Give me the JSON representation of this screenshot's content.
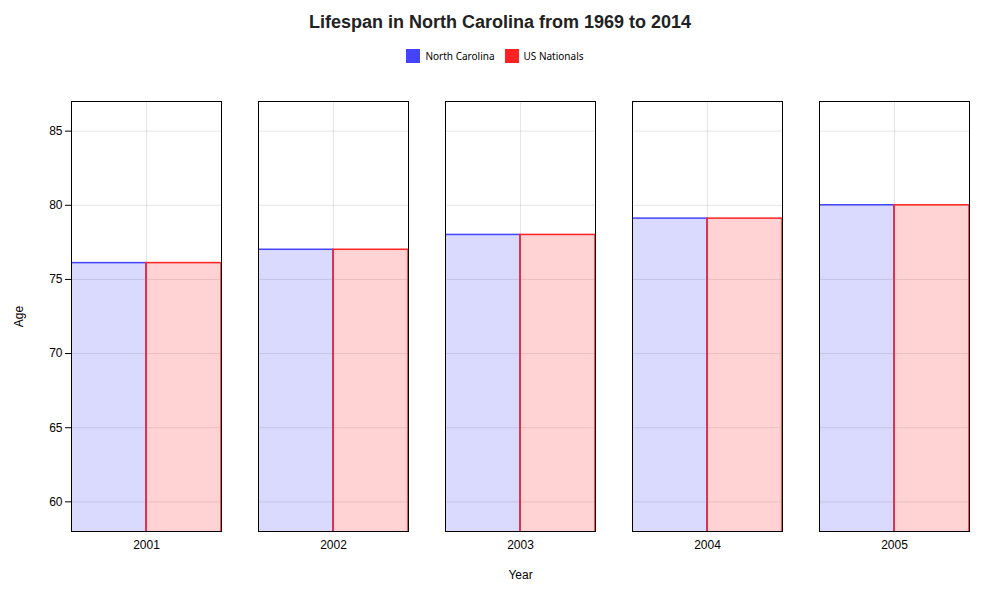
{
  "chart_data": {
    "type": "bar",
    "title": "Lifespan in North Carolina from 1969 to 2014",
    "xlabel": "Year",
    "ylabel": "Age",
    "categories": [
      "2001",
      "2002",
      "2003",
      "2004",
      "2005"
    ],
    "series": [
      {
        "name": "North Carolina",
        "color": "#4444ff",
        "values": [
          76.1,
          77.0,
          78.0,
          79.1,
          80.0
        ]
      },
      {
        "name": "US Nationals",
        "color": "#ff2222",
        "values": [
          76.1,
          77.0,
          78.0,
          79.1,
          80.0
        ]
      }
    ],
    "ylim": [
      58,
      87
    ],
    "yticks": [
      60,
      65,
      70,
      75,
      80,
      85
    ],
    "grid": true,
    "legend": "top"
  }
}
